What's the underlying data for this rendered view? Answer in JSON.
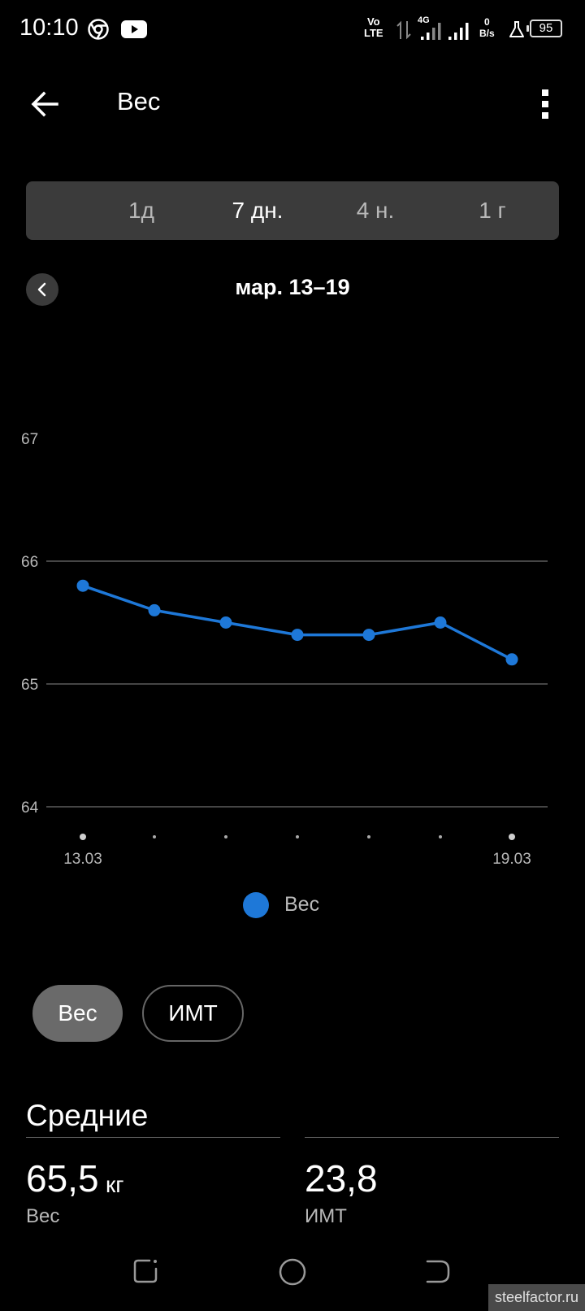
{
  "status_bar": {
    "time": "10:10",
    "volte_line1": "Vo",
    "volte_line2": "LTE",
    "network_type": "4G",
    "net_speed_value": "0",
    "net_speed_unit": "B/s",
    "battery": "95",
    "icons": [
      "chrome-icon",
      "youtube-icon",
      "signal-icon",
      "flask-icon",
      "battery-icon"
    ]
  },
  "header": {
    "title": "Вес",
    "back_icon": "arrow-left-icon",
    "menu_icon": "more-vert-icon"
  },
  "period_tabs": [
    {
      "label": "1д",
      "active": false
    },
    {
      "label": "7 дн.",
      "active": true
    },
    {
      "label": "4 н.",
      "active": false
    },
    {
      "label": "1 г",
      "active": false
    }
  ],
  "date_nav": {
    "range": "мар. 13–19",
    "prev_icon": "chevron-left-icon"
  },
  "chart_data": {
    "type": "line",
    "x": [
      "13.03",
      "14.03",
      "15.03",
      "16.03",
      "17.03",
      "18.03",
      "19.03"
    ],
    "x_tick_labels": [
      "13.03",
      "",
      "",
      "",
      "",
      "",
      "19.03"
    ],
    "series": [
      {
        "name": "Вес",
        "values": [
          65.8,
          65.6,
          65.5,
          65.4,
          65.4,
          65.5,
          65.2
        ],
        "color": "#1e78d8"
      }
    ],
    "y_ticks": [
      64,
      65,
      66,
      67
    ],
    "ylim": [
      64,
      67
    ],
    "grid_lines": [
      64,
      65,
      66
    ],
    "legend_position": "bottom"
  },
  "legend": {
    "label": "Вес",
    "color": "#1e78d8"
  },
  "toggle": {
    "weight_label": "Вес",
    "bmi_label": "ИМТ",
    "selected": "weight"
  },
  "averages": {
    "title": "Средние",
    "weight_value": "65,5",
    "weight_unit": "кг",
    "weight_label": "Вес",
    "bmi_value": "23,8",
    "bmi_label": "ИМТ"
  },
  "nav_bar": {
    "icons": [
      "recents-icon",
      "home-icon",
      "back-icon"
    ]
  },
  "watermark": "steelfactor.ru",
  "colors": {
    "background": "#000000",
    "accent": "#1e78d8",
    "surface": "#3b3b3b"
  }
}
